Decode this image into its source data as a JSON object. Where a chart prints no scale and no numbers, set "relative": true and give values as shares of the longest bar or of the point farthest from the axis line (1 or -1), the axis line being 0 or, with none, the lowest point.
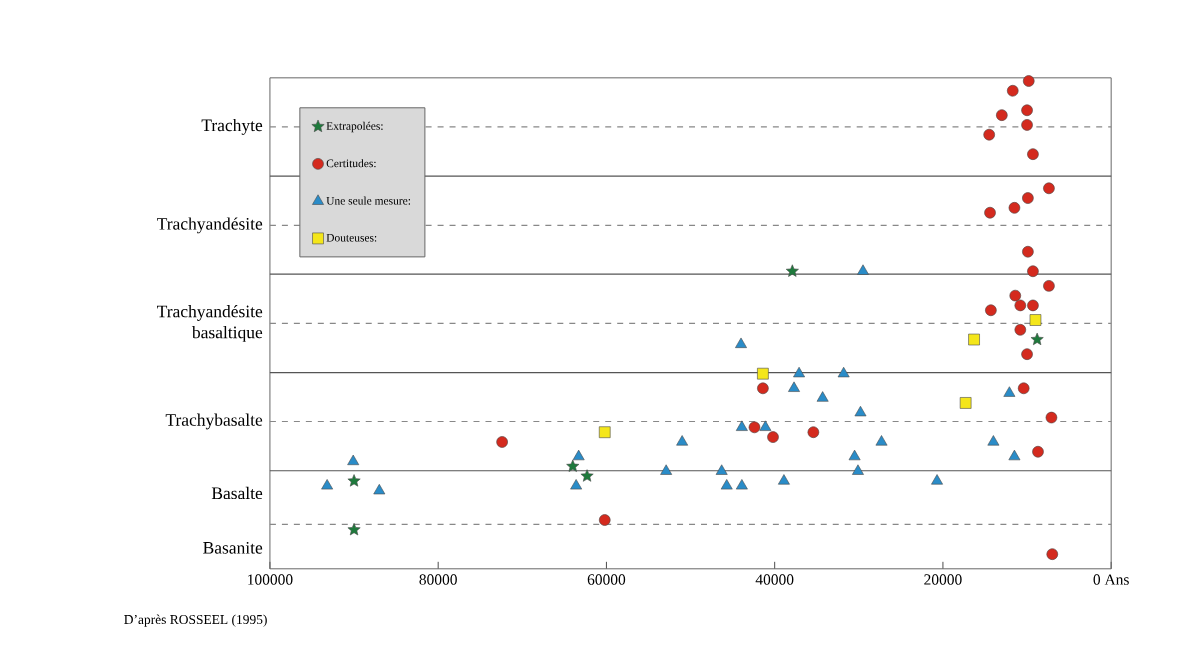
{
  "chart_data": {
    "type": "scatter",
    "relative": true,
    "xlim": [
      100000,
      0
    ],
    "xticks": [
      100000,
      80000,
      60000,
      40000,
      20000,
      {
        "value": 0,
        "label": "0 Ans"
      }
    ],
    "legend": "top left",
    "ref_lines": [
      {
        "axis": "y",
        "value": 0.805,
        "line_style": "solid",
        "color": "#555555"
      },
      {
        "axis": "y",
        "value": 0.604,
        "line_style": "solid",
        "color": "#555555"
      },
      {
        "axis": "y",
        "value": 0.402,
        "line_style": "solid",
        "color": "#555555"
      },
      {
        "axis": "y",
        "value": 0.201,
        "line_style": "solid",
        "color": "#555555"
      },
      {
        "axis": "y",
        "value": 0.906,
        "line_style": "dashed",
        "color": "#888888",
        "label": "Trachyte"
      },
      {
        "axis": "y",
        "value": 0.704,
        "line_style": "dashed",
        "color": "#888888",
        "label": "Trachyandésite"
      },
      {
        "axis": "y",
        "value": 0.503,
        "line_style": "dashed",
        "color": "#888888",
        "label": "Trachyandésite basaltique"
      },
      {
        "axis": "y",
        "value": 0.302,
        "line_style": "dashed",
        "color": "#888888",
        "label": "Trachybasalte"
      },
      {
        "axis": "y",
        "value": 0.091,
        "line_style": "dashed",
        "color": "#888888"
      }
    ],
    "series": [
      {
        "name": "Extrapolées:",
        "color": "#1e7a3c",
        "marker": "star",
        "x": [
          37900,
          8800,
          90000,
          90000,
          64000,
          62300
        ],
        "values": [
          0.61,
          0.47,
          0.18,
          0.08,
          0.21,
          0.19
        ]
      },
      {
        "name": "Certitudes:",
        "color": "#d42a1e",
        "marker": "circle",
        "x": [
          9800,
          11700,
          13000,
          10000,
          10000,
          14500,
          9300,
          7400,
          9900,
          11500,
          14400,
          9900,
          9300,
          7400,
          11400,
          10800,
          9300,
          14300,
          10800,
          10000,
          41400,
          10400,
          42400,
          40200,
          35400,
          7100,
          8700,
          7000,
          72400,
          60200
        ],
        "values": [
          1,
          0.98,
          0.93,
          0.94,
          0.91,
          0.89,
          0.85,
          0.78,
          0.76,
          0.74,
          0.73,
          0.65,
          0.61,
          0.58,
          0.56,
          0.54,
          0.54,
          0.53,
          0.49,
          0.44,
          0.37,
          0.37,
          0.29,
          0.27,
          0.28,
          0.31,
          0.24,
          0.03,
          0.26,
          0.1
        ]
      },
      {
        "name": "Une seule mesure:",
        "color": "#2a8cc8",
        "marker": "triangle",
        "x": [
          29500,
          90100,
          93200,
          87000,
          63300,
          63600,
          52900,
          51000,
          44000,
          37100,
          37700,
          31800,
          34300,
          29800,
          43900,
          41100,
          27300,
          30500,
          30100,
          46300,
          45700,
          43900,
          38900,
          20700,
          14000,
          11500,
          12100
        ],
        "values": [
          0.61,
          0.22,
          0.17,
          0.16,
          0.23,
          0.17,
          0.2,
          0.26,
          0.46,
          0.4,
          0.37,
          0.4,
          0.35,
          0.32,
          0.29,
          0.29,
          0.26,
          0.23,
          0.2,
          0.2,
          0.17,
          0.17,
          0.18,
          0.18,
          0.26,
          0.23,
          0.36
        ]
      },
      {
        "name": "Douteuses:",
        "color": "#f4e61a",
        "marker": "square",
        "x": [
          60200,
          41400,
          16300,
          17300,
          9000
        ],
        "values": [
          0.28,
          0.4,
          0.47,
          0.34,
          0.51
        ]
      }
    ],
    "annotations": [
      "Basalte",
      "Basanite",
      "D’après ROSSEEL (1995)"
    ]
  }
}
